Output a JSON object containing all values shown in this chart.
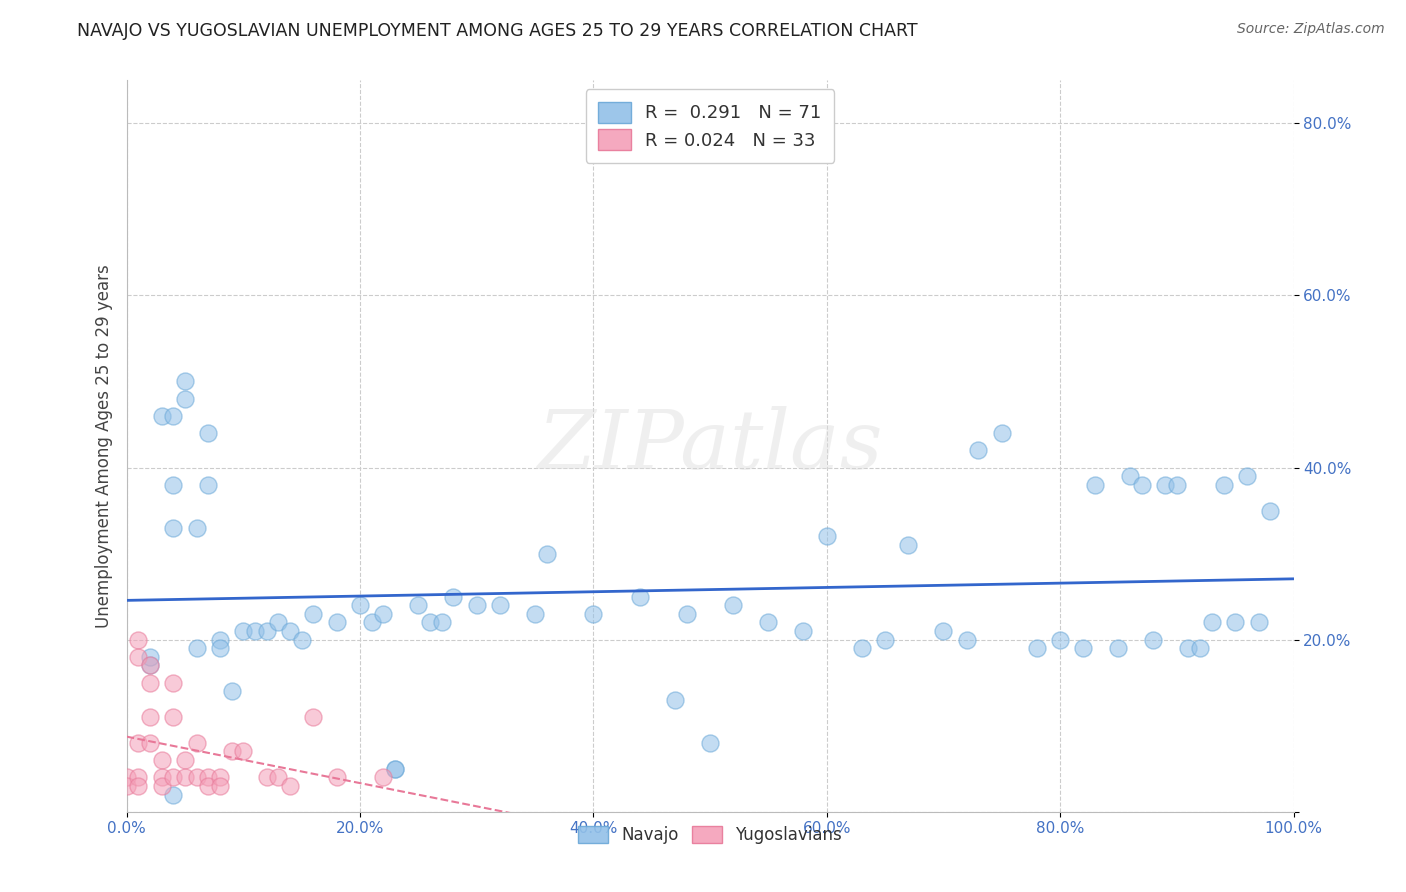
{
  "title": "NAVAJO VS YUGOSLAVIAN UNEMPLOYMENT AMONG AGES 25 TO 29 YEARS CORRELATION CHART",
  "source": "Source: ZipAtlas.com",
  "ylabel": "Unemployment Among Ages 25 to 29 years",
  "xlim": [
    0.0,
    1.0
  ],
  "ylim": [
    0.0,
    0.85
  ],
  "xticks": [
    0.0,
    0.2,
    0.4,
    0.6,
    0.8,
    1.0
  ],
  "xticklabels": [
    "0.0%",
    "20.0%",
    "40.0%",
    "60.0%",
    "80.0%",
    "100.0%"
  ],
  "yticks": [
    0.0,
    0.2,
    0.4,
    0.6,
    0.8
  ],
  "yticklabels": [
    "",
    "20.0%",
    "40.0%",
    "60.0%",
    "80.0%"
  ],
  "navajo_color": "#92C0E8",
  "yugoslavian_color": "#F4A0B8",
  "navajo_edge_color": "#6AA8D8",
  "yugoslavian_edge_color": "#E87898",
  "navajo_R": 0.291,
  "navajo_N": 71,
  "yugoslavian_R": 0.024,
  "yugoslavian_N": 33,
  "navajo_line_color": "#3366CC",
  "yugoslavian_line_color": "#E87898",
  "watermark_text": "ZIPatlas",
  "navajo_x": [
    0.02,
    0.03,
    0.04,
    0.04,
    0.05,
    0.05,
    0.06,
    0.06,
    0.07,
    0.08,
    0.08,
    0.09,
    0.1,
    0.11,
    0.12,
    0.13,
    0.14,
    0.15,
    0.16,
    0.18,
    0.2,
    0.21,
    0.22,
    0.23,
    0.25,
    0.26,
    0.27,
    0.28,
    0.3,
    0.32,
    0.35,
    0.36,
    0.4,
    0.44,
    0.47,
    0.48,
    0.5,
    0.52,
    0.55,
    0.58,
    0.6,
    0.63,
    0.65,
    0.67,
    0.7,
    0.72,
    0.73,
    0.75,
    0.78,
    0.8,
    0.82,
    0.83,
    0.85,
    0.86,
    0.87,
    0.88,
    0.89,
    0.9,
    0.91,
    0.92,
    0.93,
    0.94,
    0.95,
    0.96,
    0.97,
    0.98,
    0.02,
    0.04,
    0.04,
    0.07,
    0.23
  ],
  "navajo_y": [
    0.17,
    0.46,
    0.46,
    0.33,
    0.5,
    0.48,
    0.19,
    0.33,
    0.44,
    0.2,
    0.19,
    0.14,
    0.21,
    0.21,
    0.21,
    0.22,
    0.21,
    0.2,
    0.23,
    0.22,
    0.24,
    0.22,
    0.23,
    0.05,
    0.24,
    0.22,
    0.22,
    0.25,
    0.24,
    0.24,
    0.23,
    0.3,
    0.23,
    0.25,
    0.13,
    0.23,
    0.08,
    0.24,
    0.22,
    0.21,
    0.32,
    0.19,
    0.2,
    0.31,
    0.21,
    0.2,
    0.42,
    0.44,
    0.19,
    0.2,
    0.19,
    0.38,
    0.19,
    0.39,
    0.38,
    0.2,
    0.38,
    0.38,
    0.19,
    0.19,
    0.22,
    0.38,
    0.22,
    0.39,
    0.22,
    0.35,
    0.18,
    0.38,
    0.02,
    0.38,
    0.05
  ],
  "yugoslavian_x": [
    0.0,
    0.0,
    0.01,
    0.01,
    0.01,
    0.01,
    0.01,
    0.02,
    0.02,
    0.02,
    0.02,
    0.03,
    0.03,
    0.03,
    0.04,
    0.04,
    0.04,
    0.05,
    0.05,
    0.06,
    0.06,
    0.07,
    0.07,
    0.08,
    0.08,
    0.09,
    0.1,
    0.12,
    0.13,
    0.14,
    0.16,
    0.18,
    0.22
  ],
  "yugoslavian_y": [
    0.04,
    0.03,
    0.2,
    0.18,
    0.08,
    0.04,
    0.03,
    0.17,
    0.15,
    0.11,
    0.08,
    0.06,
    0.04,
    0.03,
    0.15,
    0.11,
    0.04,
    0.06,
    0.04,
    0.08,
    0.04,
    0.04,
    0.03,
    0.04,
    0.03,
    0.07,
    0.07,
    0.04,
    0.04,
    0.03,
    0.11,
    0.04,
    0.04
  ]
}
